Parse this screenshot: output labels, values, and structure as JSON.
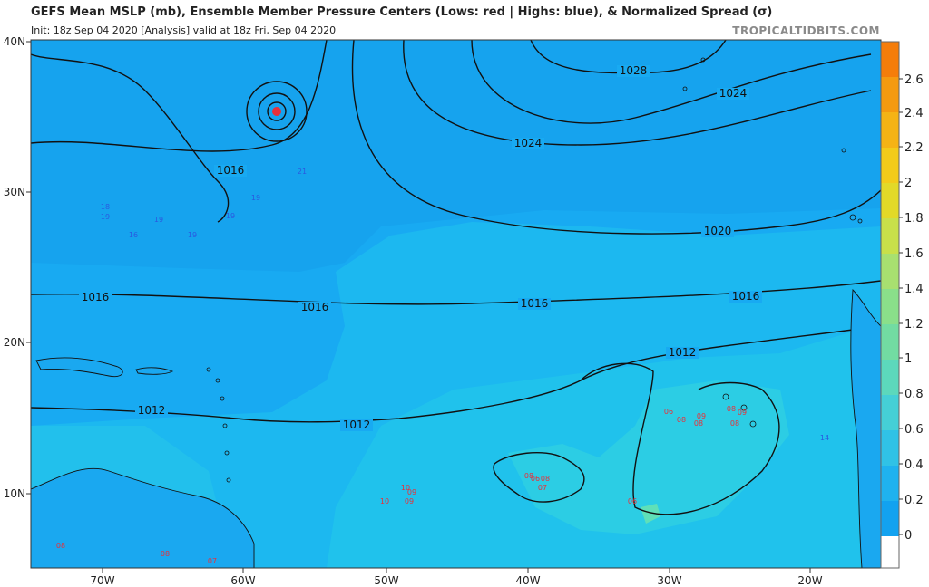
{
  "header": {
    "title": "GEFS Mean MSLP (mb), Ensemble Member Pressure Centers (Lows: red | Highs: blue), & Normalized Spread (σ)",
    "subtitle": "Init: 18z Sep 04 2020   [Analysis]   valid at 18z Fri, Sep 04 2020",
    "brand": "TROPICALTIDBITS.COM"
  },
  "map": {
    "lat_labels": [
      "40N",
      "30N",
      "20N",
      "10N"
    ],
    "lon_labels": [
      "70W",
      "60W",
      "50W",
      "40W",
      "30W",
      "20W"
    ],
    "isobar_labels": [
      {
        "text": "1028"
      },
      {
        "text": "1024"
      },
      {
        "text": "1024"
      },
      {
        "text": "1016"
      },
      {
        "text": "1020"
      },
      {
        "text": "1016"
      },
      {
        "text": "1016"
      },
      {
        "text": "1016"
      },
      {
        "text": "1016"
      },
      {
        "text": "1012"
      },
      {
        "text": "1012"
      },
      {
        "text": "1012"
      }
    ],
    "high_centers": [
      "21",
      "19",
      "19",
      "18",
      "19",
      "19",
      "16",
      "19",
      "14"
    ],
    "low_centers": [
      "10",
      "09",
      "10",
      "09",
      "08",
      "06",
      "07",
      "08",
      "06",
      "08",
      "09",
      "08",
      "08",
      "09",
      "08",
      "06",
      "08",
      "07",
      "08"
    ],
    "colors": {
      "ocean_base": "#18aaf2",
      "spread_high": "#1fc0ec",
      "spread_higher": "#33d3e0",
      "spread_peak": "#5fe0b8",
      "contour": "#111111",
      "low_marker": "#e8303a",
      "high_marker": "#2a5ae0"
    }
  },
  "colorbar": {
    "ticks": [
      "2.6",
      "2.4",
      "2.2",
      "2",
      "1.8",
      "1.6",
      "1.4",
      "1.2",
      "1",
      "0.8",
      "0.6",
      "0.4",
      "0.2",
      "0"
    ],
    "colors": [
      "#f57d0a",
      "#f59a10",
      "#f5b315",
      "#f2cb1a",
      "#e2d928",
      "#c8e04a",
      "#a8e070",
      "#8adf8a",
      "#72dca2",
      "#5cd8bc",
      "#45cfd6",
      "#30c2e6",
      "#1fb2ef",
      "#12a2f0"
    ]
  }
}
